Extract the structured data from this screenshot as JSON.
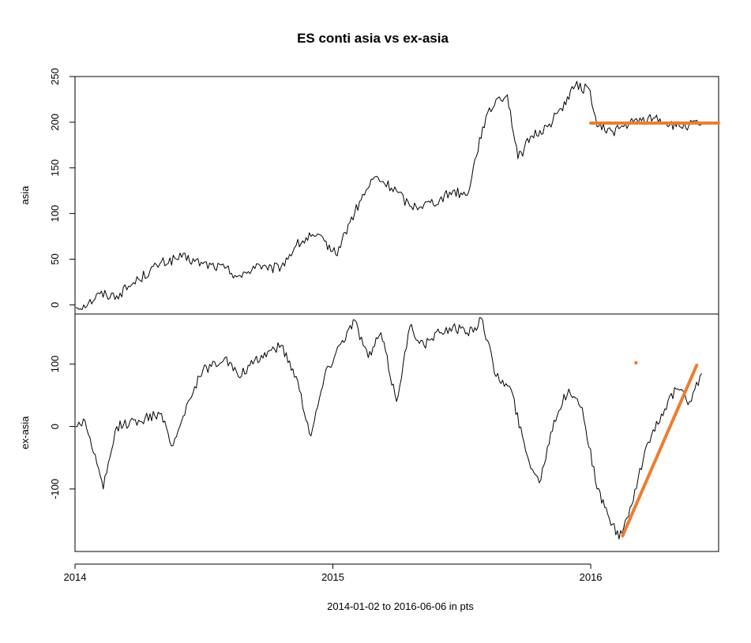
{
  "chart_data": {
    "type": "line",
    "title": "ES conti asia vs ex-asia",
    "xlabel": "2014-01-02 to 2016-06-06   in pts",
    "x_ticks": [
      "2014",
      "2015",
      "2016"
    ],
    "x_range": [
      "2014-01-01",
      "2016-06-30"
    ],
    "colors": {
      "series": "#000000",
      "overlay": "#ED7D31"
    },
    "panels": [
      {
        "ylabel": "asia",
        "ylim": [
          -10,
          250
        ],
        "y_ticks": [
          0,
          50,
          100,
          150,
          200,
          250
        ],
        "series": {
          "x": [
            "2014-01-02",
            "2014-01-20",
            "2014-02-05",
            "2014-03-01",
            "2014-04-01",
            "2014-05-01",
            "2014-06-01",
            "2014-07-01",
            "2014-08-01",
            "2014-08-25",
            "2014-09-15",
            "2014-10-01",
            "2014-10-20",
            "2014-11-10",
            "2014-12-01",
            "2014-12-20",
            "2015-01-05",
            "2015-01-25",
            "2015-02-10",
            "2015-03-01",
            "2015-04-01",
            "2015-04-20",
            "2015-05-10",
            "2015-06-01",
            "2015-06-20",
            "2015-07-10",
            "2015-08-01",
            "2015-08-20",
            "2015-09-05",
            "2015-09-20",
            "2015-10-10",
            "2015-11-01",
            "2015-11-20",
            "2015-12-10",
            "2015-12-31",
            "2016-01-10",
            "2016-02-01",
            "2016-03-01",
            "2016-04-01",
            "2016-05-01",
            "2016-06-06"
          ],
          "y": [
            -3,
            2,
            12,
            10,
            28,
            45,
            52,
            45,
            40,
            30,
            45,
            38,
            42,
            65,
            75,
            70,
            55,
            90,
            115,
            140,
            125,
            108,
            110,
            115,
            125,
            120,
            195,
            225,
            230,
            160,
            185,
            195,
            215,
            240,
            235,
            195,
            190,
            200,
            205,
            195,
            198
          ]
        },
        "overlay": {
          "x": [
            "2016-01-01",
            "2016-06-30"
          ],
          "y": [
            199,
            199
          ]
        }
      },
      {
        "ylabel": "ex-asia",
        "ylim": [
          -200,
          180
        ],
        "y_ticks": [
          -100,
          0,
          100
        ],
        "series": {
          "x": [
            "2014-01-02",
            "2014-01-15",
            "2014-02-01",
            "2014-02-10",
            "2014-03-01",
            "2014-04-01",
            "2014-05-01",
            "2014-05-20",
            "2014-06-10",
            "2014-07-01",
            "2014-08-01",
            "2014-08-20",
            "2014-09-10",
            "2014-10-01",
            "2014-10-20",
            "2014-11-10",
            "2014-12-01",
            "2014-12-20",
            "2015-01-10",
            "2015-02-01",
            "2015-02-20",
            "2015-03-10",
            "2015-04-01",
            "2015-04-20",
            "2015-05-10",
            "2015-06-01",
            "2015-06-20",
            "2015-07-10",
            "2015-08-01",
            "2015-08-20",
            "2015-09-10",
            "2015-10-01",
            "2015-10-20",
            "2015-11-10",
            "2015-12-01",
            "2015-12-20",
            "2016-01-10",
            "2016-01-25",
            "2016-02-10",
            "2016-03-01",
            "2016-03-20",
            "2016-04-10",
            "2016-05-01",
            "2016-05-20",
            "2016-06-06"
          ],
          "y": [
            0,
            10,
            -60,
            -100,
            0,
            10,
            20,
            -30,
            40,
            90,
            110,
            80,
            100,
            120,
            130,
            80,
            -15,
            80,
            130,
            170,
            110,
            150,
            40,
            160,
            130,
            150,
            160,
            150,
            170,
            80,
            60,
            -40,
            -90,
            10,
            60,
            30,
            -100,
            -140,
            -180,
            -120,
            -30,
            20,
            60,
            40,
            85
          ]
        },
        "overlay": {
          "x": [
            "2016-02-15",
            "2016-05-30"
          ],
          "y": [
            -175,
            98
          ]
        },
        "marker": {
          "x": "2016-03-05",
          "y": 102
        }
      }
    ]
  }
}
